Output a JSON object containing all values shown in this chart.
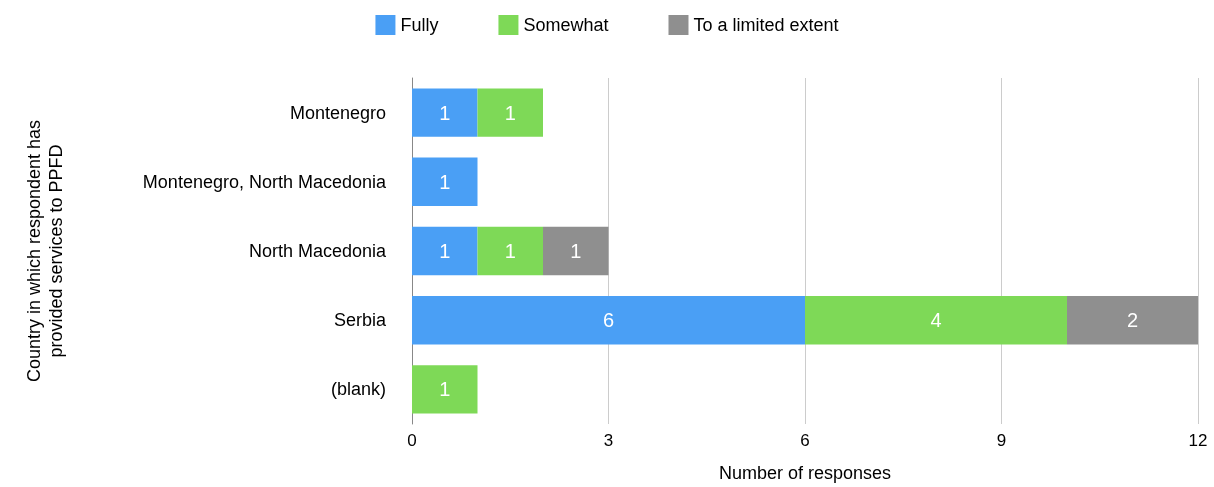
{
  "chart_data": {
    "type": "bar",
    "orientation": "horizontal",
    "stacked": true,
    "xlabel": "Number of responses",
    "ylabel": "Country in which respondent has provided services to PPFD",
    "categories": [
      "Montenegro",
      "Montenegro, North Macedonia",
      "North Macedonia",
      "Serbia",
      "(blank)"
    ],
    "series": [
      {
        "name": "Fully",
        "color": "#4a9ff5",
        "values": [
          1,
          1,
          1,
          6,
          null
        ]
      },
      {
        "name": "Somewhat",
        "color": "#7ed957",
        "values": [
          1,
          null,
          1,
          4,
          1
        ]
      },
      {
        "name": "To a limited extent",
        "color": "#8f8f8f",
        "values": [
          null,
          null,
          1,
          2,
          null
        ]
      }
    ],
    "xlim": [
      0,
      12
    ],
    "xticks": [
      0,
      3,
      6,
      9,
      12
    ],
    "grid": "x",
    "legend": "top",
    "data_labels": true
  }
}
